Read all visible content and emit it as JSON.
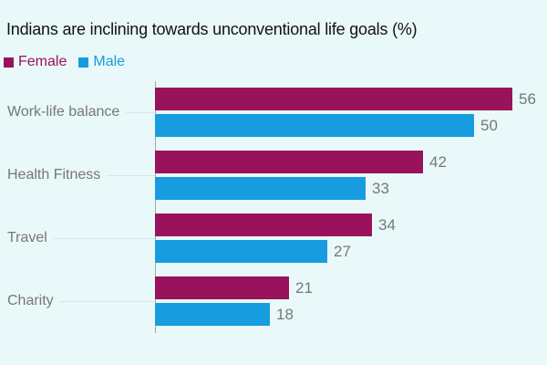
{
  "window": {
    "background": "#E9F8F9"
  },
  "chart_data": {
    "type": "bar",
    "orientation": "horizontal",
    "title": "Indians are inclining towards unconventional life goals (%)",
    "categories": [
      "Work-life balance",
      "Health Fitness",
      "Travel",
      "Charity"
    ],
    "series": [
      {
        "name": "Female",
        "color": "#98135C",
        "values": [
          56,
          42,
          34,
          21
        ]
      },
      {
        "name": "Male",
        "color": "#169CDF",
        "values": [
          50,
          33,
          27,
          18
        ]
      }
    ],
    "xlim": [
      0,
      60
    ],
    "xlabel": "",
    "ylabel": "",
    "grid": false,
    "legend_position": "top-left",
    "value_labels": true,
    "title_color": "#121212",
    "axis_color": "#A5A5A5",
    "label_color": "#777777",
    "leader_line_color": "#D9E6E7"
  }
}
